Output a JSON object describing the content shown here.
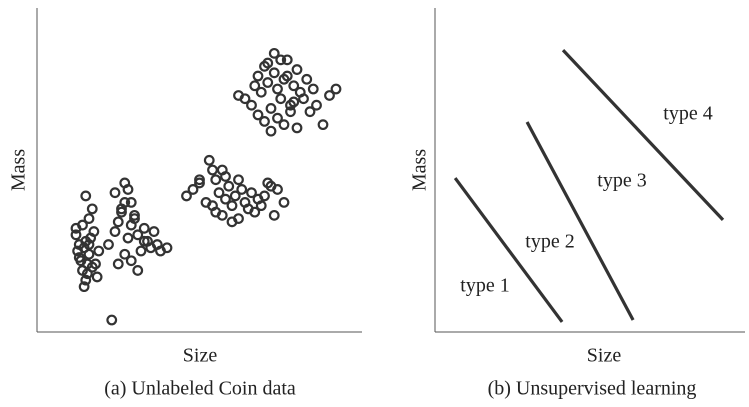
{
  "chart_data": [
    {
      "type": "scatter",
      "x_label": "Size",
      "y_label": "Mass",
      "caption": "(a) Unlabeled Coin data",
      "color": "#333333",
      "xlim": [
        0,
        100
      ],
      "ylim": [
        0,
        100
      ],
      "x": [
        12,
        13,
        12.5,
        14,
        15,
        13.5,
        16,
        17,
        15.5,
        14.5,
        16.5,
        18,
        17.5,
        15,
        13,
        14,
        16,
        19,
        15,
        17,
        12,
        14.5,
        16,
        18.5,
        15.5,
        23,
        22,
        24,
        25,
        26,
        27,
        28,
        29,
        30,
        31,
        32,
        27,
        29,
        33,
        35,
        36,
        38,
        40,
        24,
        26,
        28,
        30,
        34,
        25,
        31,
        37,
        29,
        27,
        33,
        46,
        48,
        50,
        52,
        54,
        53,
        55,
        56,
        57,
        58,
        59,
        60,
        61,
        62,
        63,
        64,
        65,
        66,
        67,
        68,
        70,
        72,
        74,
        76,
        58,
        55,
        60,
        69,
        71,
        73,
        50,
        54,
        62,
        57,
        62,
        64,
        66,
        67,
        68,
        69,
        70,
        71,
        72,
        73,
        74,
        75,
        76,
        77,
        78,
        79,
        80,
        81,
        82,
        83,
        84,
        85,
        86,
        88,
        90,
        92,
        70,
        72,
        74,
        76,
        78,
        80,
        73,
        75,
        77,
        79,
        68,
        71
      ],
      "y": [
        30,
        27,
        25,
        33,
        28,
        22,
        24,
        20,
        18,
        26,
        29,
        21,
        31,
        16,
        23,
        19,
        35,
        25,
        42,
        38,
        32,
        14,
        27,
        17,
        21,
        3.7,
        27,
        31,
        34,
        37,
        40,
        29,
        33,
        36,
        30,
        25,
        24,
        22,
        28,
        26,
        31,
        25,
        26,
        43,
        38,
        44,
        35,
        28,
        21,
        19,
        27,
        40,
        46,
        32,
        42,
        44,
        46,
        40,
        50,
        53,
        47,
        43,
        36,
        41,
        45,
        39,
        42,
        35,
        44,
        40,
        38,
        43,
        37,
        41,
        42,
        45,
        44,
        40,
        48,
        37,
        34,
        39,
        46,
        36,
        47,
        39,
        47,
        50,
        73,
        72,
        70,
        76,
        79,
        74,
        82,
        77,
        69,
        80,
        75,
        72,
        78,
        84,
        70,
        76,
        81,
        74,
        72,
        78,
        68,
        75,
        70,
        64,
        73,
        75,
        65,
        62,
        66,
        64,
        68,
        63,
        86,
        84,
        79,
        71,
        67,
        83
      ]
    },
    {
      "type": "line",
      "x_label": "Size",
      "y_label": "Mass",
      "caption": "(b) Unsupervised learning",
      "xlim": [
        0,
        100
      ],
      "ylim": [
        0,
        100
      ],
      "series": [
        {
          "color": "#333333",
          "x": [
            6.5,
            41
          ],
          "values": [
            47.5,
            3.1
          ]
        },
        {
          "color": "#333333",
          "x": [
            29.7,
            63.9
          ],
          "values": [
            64.8,
            3.7
          ]
        },
        {
          "color": "#333333",
          "x": [
            41.3,
            92.9
          ],
          "values": [
            87,
            34.6
          ]
        }
      ],
      "annotations": [
        "type 1",
        "type 2",
        "type 3",
        "type 4"
      ]
    }
  ]
}
